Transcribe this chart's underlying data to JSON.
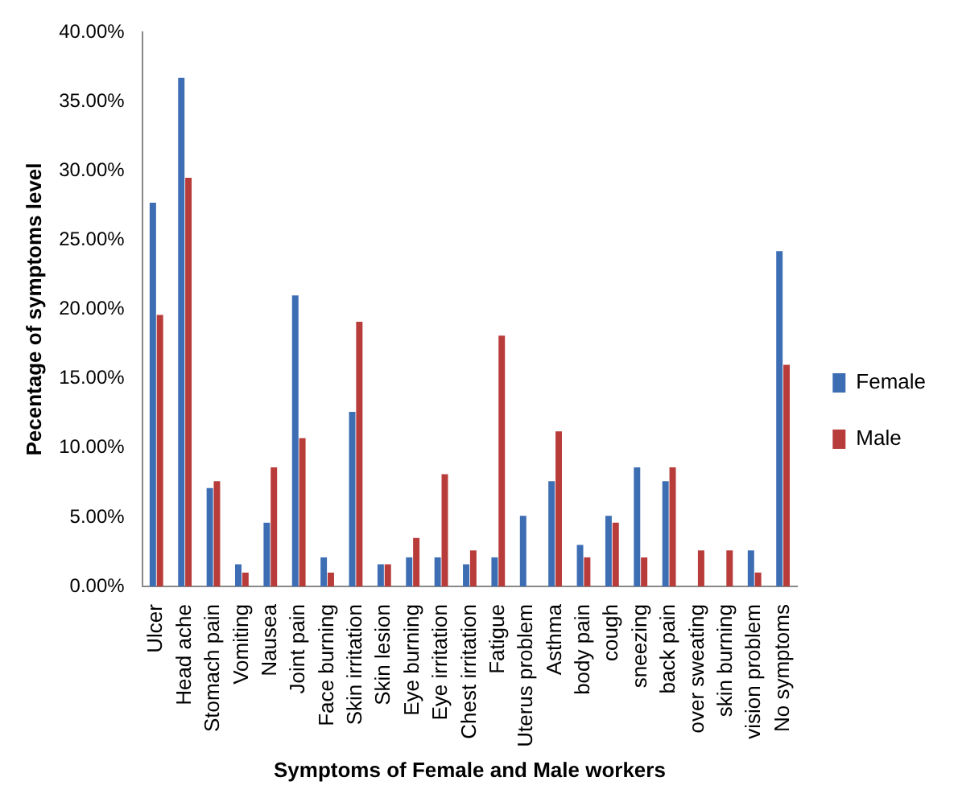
{
  "chart_data": {
    "type": "bar",
    "xlabel": "Symptoms of Female and Male workers",
    "ylabel": "Pecentage of symptoms level",
    "categories": [
      "Ulcer",
      "Head ache",
      "Stomach pain",
      "Vomiting",
      "Nausea",
      "Joint pain",
      "Face burning",
      "Skin irritation",
      "Skin lesion",
      "Eye burning",
      "Eye irritation",
      "Chest irritation",
      "Fatigue",
      "Uterus problem",
      "Asthma",
      "body pain",
      "cough",
      "sneezing",
      "back pain",
      "over sweating",
      "skin burning",
      "vision problem",
      "No symptoms"
    ],
    "series": [
      {
        "name": "Female",
        "color": "#3d6eb4",
        "values": [
          27.7,
          36.7,
          7.1,
          1.6,
          4.6,
          21.0,
          2.1,
          12.6,
          1.6,
          2.1,
          2.1,
          1.6,
          2.1,
          5.1,
          7.6,
          3.0,
          5.1,
          8.6,
          7.6,
          0,
          0,
          2.6,
          24.2
        ]
      },
      {
        "name": "Male",
        "color": "#b83c3a",
        "values": [
          19.6,
          29.5,
          7.6,
          1.0,
          8.6,
          10.7,
          1.0,
          19.1,
          1.6,
          3.5,
          8.1,
          2.6,
          18.1,
          0,
          11.2,
          2.1,
          4.6,
          2.1,
          8.6,
          2.6,
          2.6,
          1.0,
          16.0
        ]
      }
    ],
    "ylim": [
      0,
      40
    ],
    "yticks": [
      {
        "value": 0,
        "label": "0.00%"
      },
      {
        "value": 5,
        "label": "5.00%"
      },
      {
        "value": 10,
        "label": "10.00%"
      },
      {
        "value": 15,
        "label": "15.00%"
      },
      {
        "value": 20,
        "label": "20.00%"
      },
      {
        "value": 25,
        "label": "25.00%"
      },
      {
        "value": 30,
        "label": "30.00%"
      },
      {
        "value": 35,
        "label": "35.00%"
      },
      {
        "value": 40,
        "label": "40.00%"
      }
    ],
    "grid": false,
    "legend": "right"
  }
}
